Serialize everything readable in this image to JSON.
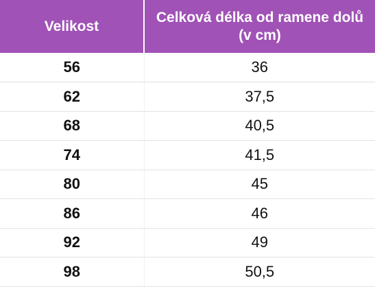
{
  "table": {
    "header": [
      "Velikost",
      "Celková délka od ramene dolů (v cm)"
    ],
    "rows": [
      [
        "56",
        "36"
      ],
      [
        "62",
        "37,5"
      ],
      [
        "68",
        "40,5"
      ],
      [
        "74",
        "41,5"
      ],
      [
        "80",
        "45"
      ],
      [
        "86",
        "46"
      ],
      [
        "92",
        "49"
      ],
      [
        "98",
        "50,5"
      ]
    ]
  }
}
